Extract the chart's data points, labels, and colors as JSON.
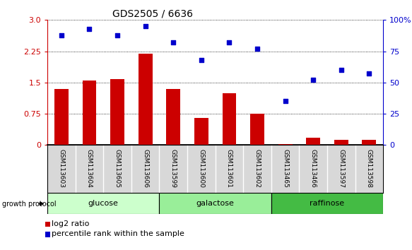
{
  "title": "GDS2505 / 6636",
  "samples": [
    "GSM113603",
    "GSM113604",
    "GSM113605",
    "GSM113606",
    "GSM113599",
    "GSM113600",
    "GSM113601",
    "GSM113602",
    "GSM113465",
    "GSM113466",
    "GSM113597",
    "GSM113598"
  ],
  "log2_values": [
    1.35,
    1.55,
    1.58,
    2.2,
    1.35,
    0.65,
    1.25,
    0.75,
    0.03,
    0.18,
    0.13,
    0.13
  ],
  "percentile": [
    88,
    93,
    88,
    95,
    82,
    68,
    82,
    77,
    35,
    52,
    60,
    57
  ],
  "bar_color": "#cc0000",
  "dot_color": "#0000cc",
  "group_labels": [
    "glucose",
    "galactose",
    "raffinose"
  ],
  "group_colors": [
    "#ccffcc",
    "#99ee99",
    "#44bb44"
  ],
  "group_ranges": [
    [
      0,
      4
    ],
    [
      4,
      8
    ],
    [
      8,
      12
    ]
  ],
  "yticks_left": [
    0,
    0.75,
    1.5,
    2.25,
    3.0
  ],
  "yticks_right": [
    0,
    25,
    50,
    75,
    100
  ],
  "ylim": [
    0,
    3.0
  ],
  "ylim_right": [
    0,
    100
  ]
}
